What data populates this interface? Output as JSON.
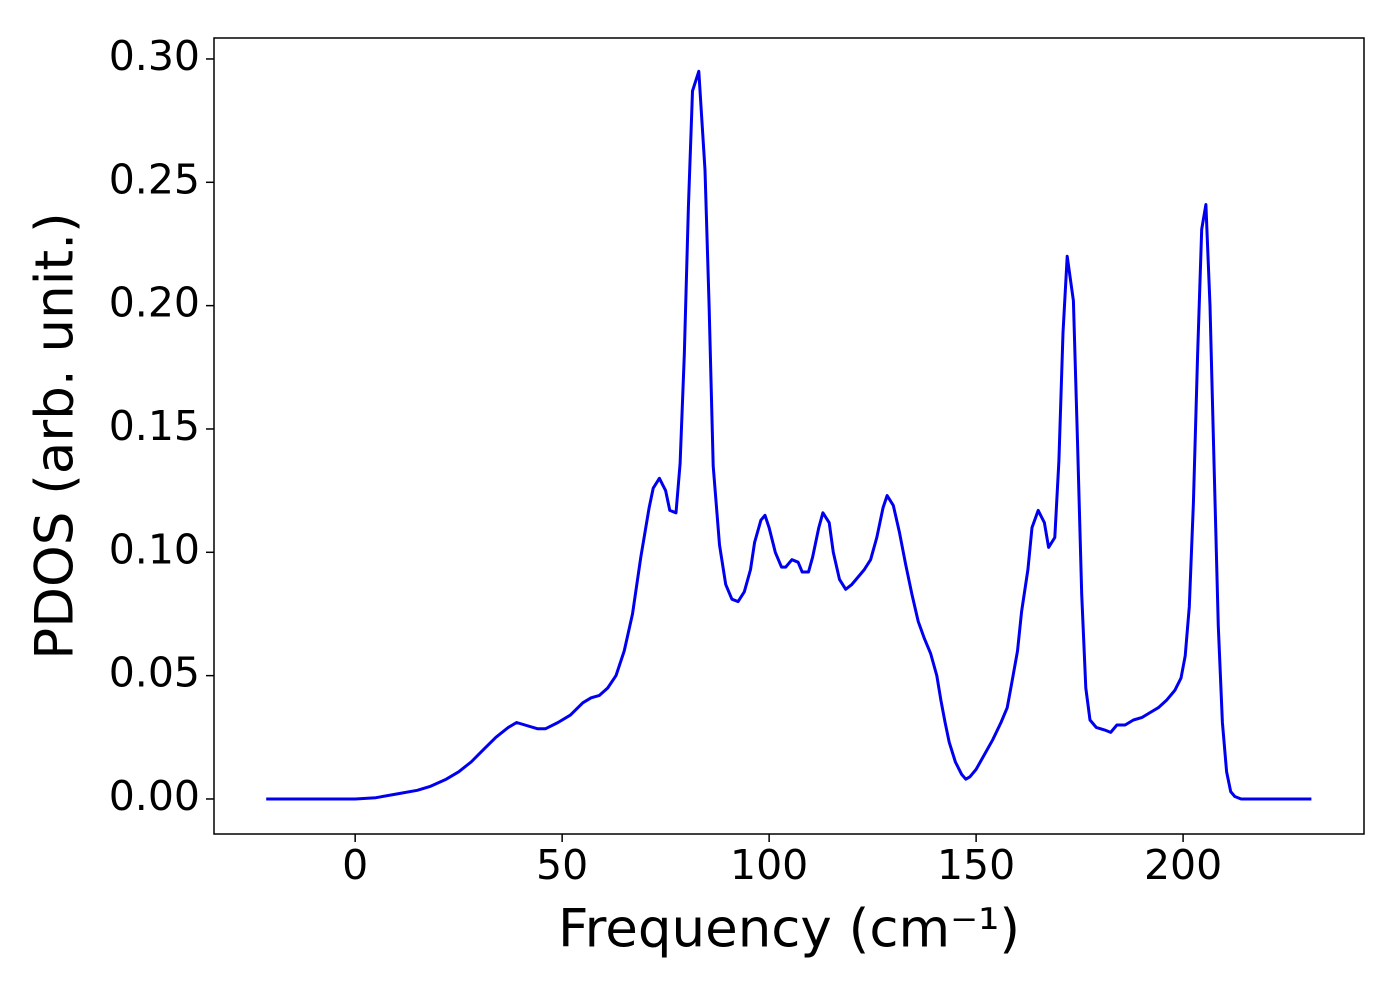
{
  "chart_data": {
    "type": "line",
    "xlabel": "Frequency (cm⁻¹)",
    "ylabel": "PDOS (arb. unit.)",
    "xlim": [
      -34.1,
      243.7
    ],
    "ylim": [
      -0.0142,
      0.3085
    ],
    "xticks": [
      0,
      50,
      100,
      150,
      200
    ],
    "yticks": [
      {
        "value": 0,
        "label": "0.00"
      },
      {
        "value": 0.05,
        "label": "0.05"
      },
      {
        "value": 0.1,
        "label": "0.10"
      },
      {
        "value": 0.15,
        "label": "0.15"
      },
      {
        "value": 0.2,
        "label": "0.20"
      },
      {
        "value": 0.25,
        "label": "0.25"
      },
      {
        "value": 0.3,
        "label": "0.30"
      }
    ],
    "grid": false,
    "x": [
      -21.5,
      0,
      5,
      10,
      15,
      18,
      22,
      25,
      28,
      31,
      34,
      37,
      39,
      41,
      44,
      46,
      49,
      52,
      55,
      57,
      59,
      61,
      63,
      65,
      67,
      69,
      71,
      72,
      73.5,
      75,
      76,
      77.5,
      78.5,
      79.5,
      80.5,
      81.5,
      83,
      84.5,
      85.5,
      86.5,
      88,
      89.5,
      91,
      92.5,
      94,
      95.5,
      96.5,
      98,
      99,
      100,
      101.5,
      103,
      104,
      105.5,
      107,
      108,
      109.5,
      110.5,
      112,
      113,
      114.5,
      115.5,
      117,
      118.5,
      120,
      121.5,
      123,
      124.5,
      126,
      127.5,
      128.5,
      130,
      131.5,
      133,
      134.5,
      136,
      137.5,
      139,
      140.5,
      141.5,
      142.5,
      143.5,
      145,
      146.5,
      147.5,
      148.5,
      150,
      152,
      154,
      156,
      157.5,
      158.5,
      160,
      161,
      162.5,
      163.5,
      165,
      166.5,
      167.5,
      169,
      170,
      171,
      172,
      173.5,
      174.5,
      175.5,
      176.5,
      177.5,
      179,
      181,
      182.5,
      184,
      186,
      188,
      190,
      192,
      194,
      196,
      198,
      199.5,
      200.5,
      201.5,
      202.5,
      203.5,
      204.5,
      205.5,
      206.5,
      207.5,
      208.5,
      209.5,
      210.5,
      211.5,
      212.5,
      214,
      231
    ],
    "series": [
      {
        "name": "PDOS",
        "color": "#0000ee",
        "values": [
          0,
          0,
          0.0005,
          0.002,
          0.0035,
          0.005,
          0.008,
          0.011,
          0.015,
          0.02,
          0.025,
          0.029,
          0.031,
          0.03,
          0.0285,
          0.0285,
          0.031,
          0.034,
          0.039,
          0.041,
          0.042,
          0.045,
          0.05,
          0.06,
          0.075,
          0.098,
          0.118,
          0.126,
          0.13,
          0.125,
          0.117,
          0.116,
          0.136,
          0.18,
          0.24,
          0.287,
          0.295,
          0.255,
          0.2,
          0.135,
          0.103,
          0.087,
          0.081,
          0.08,
          0.084,
          0.093,
          0.104,
          0.113,
          0.115,
          0.11,
          0.1,
          0.094,
          0.094,
          0.097,
          0.096,
          0.092,
          0.092,
          0.098,
          0.11,
          0.116,
          0.112,
          0.1,
          0.089,
          0.085,
          0.087,
          0.09,
          0.093,
          0.097,
          0.106,
          0.118,
          0.123,
          0.119,
          0.108,
          0.095,
          0.083,
          0.072,
          0.065,
          0.059,
          0.05,
          0.04,
          0.031,
          0.023,
          0.015,
          0.01,
          0.008,
          0.009,
          0.012,
          0.018,
          0.024,
          0.031,
          0.037,
          0.046,
          0.06,
          0.076,
          0.093,
          0.11,
          0.117,
          0.112,
          0.102,
          0.106,
          0.137,
          0.189,
          0.22,
          0.202,
          0.145,
          0.083,
          0.045,
          0.032,
          0.029,
          0.028,
          0.027,
          0.03,
          0.03,
          0.032,
          0.033,
          0.035,
          0.037,
          0.04,
          0.044,
          0.049,
          0.058,
          0.078,
          0.12,
          0.18,
          0.231,
          0.241,
          0.2,
          0.135,
          0.07,
          0.031,
          0.011,
          0.003,
          0.001,
          0,
          0
        ]
      }
    ]
  }
}
